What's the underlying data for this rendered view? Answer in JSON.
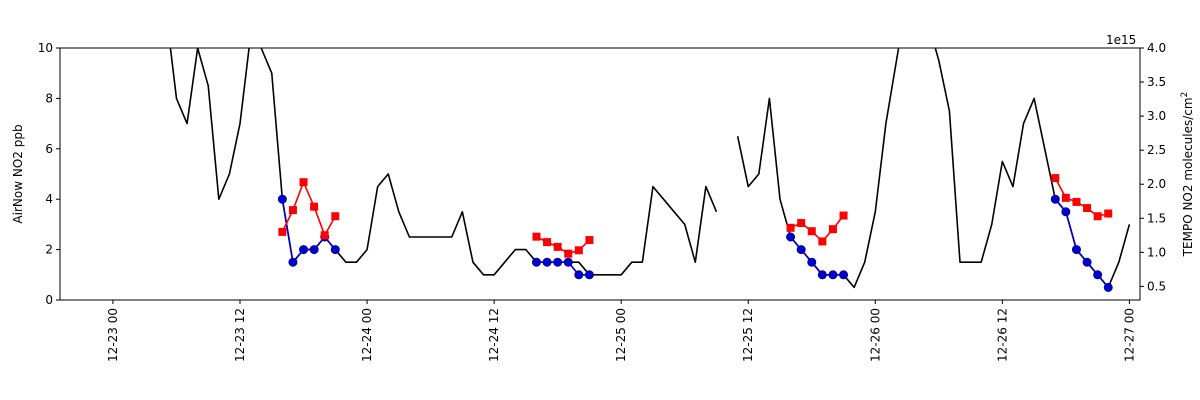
{
  "chart_data": {
    "type": "line",
    "ylabel_left": "AirNow NO2 ppb",
    "ylabel_right": "TEMPO NO2 molecules/cm",
    "ylabel_right_sup": "2",
    "right_offset_text": "1e15",
    "xlim": [
      "2012-12-22T19:00",
      "2012-12-27T01:00"
    ],
    "ylim_left": [
      0,
      10
    ],
    "ylim_right": [
      0.3,
      4.0
    ],
    "x_tick_labels": [
      {
        "t": "2012-12-23T00:00",
        "label": "12-23 00"
      },
      {
        "t": "2012-12-23T12:00",
        "label": "12-23 12"
      },
      {
        "t": "2012-12-24T00:00",
        "label": "12-24 00"
      },
      {
        "t": "2012-12-24T12:00",
        "label": "12-24 12"
      },
      {
        "t": "2012-12-25T00:00",
        "label": "12-25 00"
      },
      {
        "t": "2012-12-25T12:00",
        "label": "12-25 12"
      },
      {
        "t": "2012-12-26T00:00",
        "label": "12-26 00"
      },
      {
        "t": "2012-12-26T12:00",
        "label": "12-26 12"
      },
      {
        "t": "2012-12-27T00:00",
        "label": "12-27 00"
      }
    ],
    "y_left_ticks": [
      {
        "v": 0,
        "label": "0"
      },
      {
        "v": 2,
        "label": "2"
      },
      {
        "v": 4,
        "label": "4"
      },
      {
        "v": 6,
        "label": "6"
      },
      {
        "v": 8,
        "label": "8"
      },
      {
        "v": 10,
        "label": "10"
      }
    ],
    "y_right_ticks": [
      {
        "v": 0.5,
        "label": "0.5"
      },
      {
        "v": 1.0,
        "label": "1.0"
      },
      {
        "v": 1.5,
        "label": "1.5"
      },
      {
        "v": 2.0,
        "label": "2.0"
      },
      {
        "v": 2.5,
        "label": "2.5"
      },
      {
        "v": 3.0,
        "label": "3.0"
      },
      {
        "v": 3.5,
        "label": "3.5"
      },
      {
        "v": 4.0,
        "label": "4.0"
      }
    ],
    "series": [
      {
        "color": "#000000",
        "axis": "left",
        "marker": "none",
        "segments": [
          [
            [
              "2012-12-23T05:00",
              11.5
            ],
            [
              "2012-12-23T06:00",
              8.0
            ],
            [
              "2012-12-23T07:00",
              7.0
            ],
            [
              "2012-12-23T08:00",
              10.0
            ],
            [
              "2012-12-23T09:00",
              8.5
            ],
            [
              "2012-12-23T10:00",
              4.0
            ],
            [
              "2012-12-23T11:00",
              5.0
            ],
            [
              "2012-12-23T12:00",
              7.0
            ],
            [
              "2012-12-23T13:00",
              10.5
            ],
            [
              "2012-12-23T14:00",
              10.0
            ],
            [
              "2012-12-23T15:00",
              9.0
            ],
            [
              "2012-12-23T16:00",
              4.0
            ],
            [
              "2012-12-23T17:00",
              1.5
            ],
            [
              "2012-12-23T18:00",
              2.0
            ],
            [
              "2012-12-23T19:00",
              2.0
            ],
            [
              "2012-12-23T20:00",
              2.5
            ],
            [
              "2012-12-23T21:00",
              2.0
            ],
            [
              "2012-12-23T22:00",
              1.5
            ],
            [
              "2012-12-23T23:00",
              1.5
            ],
            [
              "2012-12-24T00:00",
              2.0
            ],
            [
              "2012-12-24T01:00",
              4.5
            ],
            [
              "2012-12-24T02:00",
              5.0
            ],
            [
              "2012-12-24T03:00",
              3.5
            ],
            [
              "2012-12-24T04:00",
              2.5
            ],
            [
              "2012-12-24T05:00",
              2.5
            ],
            [
              "2012-12-24T06:00",
              2.5
            ],
            [
              "2012-12-24T07:00",
              2.5
            ],
            [
              "2012-12-24T08:00",
              2.5
            ],
            [
              "2012-12-24T09:00",
              3.5
            ],
            [
              "2012-12-24T10:00",
              1.5
            ],
            [
              "2012-12-24T11:00",
              1.0
            ],
            [
              "2012-12-24T12:00",
              1.0
            ],
            [
              "2012-12-24T13:00",
              1.5
            ],
            [
              "2012-12-24T14:00",
              2.0
            ],
            [
              "2012-12-24T15:00",
              2.0
            ],
            [
              "2012-12-24T16:00",
              1.5
            ],
            [
              "2012-12-24T17:00",
              1.5
            ],
            [
              "2012-12-24T18:00",
              1.5
            ],
            [
              "2012-12-24T19:00",
              1.5
            ],
            [
              "2012-12-24T20:00",
              1.5
            ],
            [
              "2012-12-24T21:00",
              1.0
            ],
            [
              "2012-12-24T22:00",
              1.0
            ],
            [
              "2012-12-24T23:00",
              1.0
            ],
            [
              "2012-12-25T00:00",
              1.0
            ],
            [
              "2012-12-25T01:00",
              1.5
            ],
            [
              "2012-12-25T02:00",
              1.5
            ],
            [
              "2012-12-25T03:00",
              4.5
            ],
            [
              "2012-12-25T04:00",
              4.0
            ],
            [
              "2012-12-25T05:00",
              3.5
            ],
            [
              "2012-12-25T06:00",
              3.0
            ],
            [
              "2012-12-25T07:00",
              1.5
            ],
            [
              "2012-12-25T08:00",
              4.5
            ],
            [
              "2012-12-25T09:00",
              3.5
            ]
          ],
          [
            [
              "2012-12-25T11:00",
              6.5
            ],
            [
              "2012-12-25T12:00",
              4.5
            ],
            [
              "2012-12-25T13:00",
              5.0
            ],
            [
              "2012-12-25T14:00",
              8.0
            ],
            [
              "2012-12-25T15:00",
              4.0
            ],
            [
              "2012-12-25T16:00",
              2.5
            ],
            [
              "2012-12-25T17:00",
              2.0
            ],
            [
              "2012-12-25T18:00",
              1.5
            ],
            [
              "2012-12-25T19:00",
              1.0
            ],
            [
              "2012-12-25T20:00",
              1.0
            ],
            [
              "2012-12-25T21:00",
              1.0
            ],
            [
              "2012-12-25T22:00",
              0.5
            ],
            [
              "2012-12-25T23:00",
              1.5
            ],
            [
              "2012-12-26T00:00",
              3.5
            ],
            [
              "2012-12-26T01:00",
              7.0
            ],
            [
              "2012-12-26T02:00",
              9.5
            ],
            [
              "2012-12-26T03:00",
              12.0
            ],
            [
              "2012-12-26T04:00",
              11.0
            ],
            [
              "2012-12-26T05:00",
              11.0
            ],
            [
              "2012-12-26T06:00",
              9.5
            ],
            [
              "2012-12-26T07:00",
              7.5
            ],
            [
              "2012-12-26T08:00",
              1.5
            ],
            [
              "2012-12-26T09:00",
              1.5
            ],
            [
              "2012-12-26T10:00",
              1.5
            ],
            [
              "2012-12-26T11:00",
              3.0
            ],
            [
              "2012-12-26T12:00",
              5.5
            ],
            [
              "2012-12-26T13:00",
              4.5
            ],
            [
              "2012-12-26T14:00",
              7.0
            ],
            [
              "2012-12-26T15:00",
              8.0
            ],
            [
              "2012-12-26T16:00",
              6.0
            ],
            [
              "2012-12-26T17:00",
              4.0
            ],
            [
              "2012-12-26T18:00",
              3.5
            ],
            [
              "2012-12-26T19:00",
              2.0
            ],
            [
              "2012-12-26T20:00",
              1.5
            ],
            [
              "2012-12-26T21:00",
              1.0
            ],
            [
              "2012-12-26T22:00",
              0.5
            ],
            [
              "2012-12-26T23:00",
              1.5
            ],
            [
              "2012-12-27T00:00",
              3.0
            ]
          ]
        ]
      },
      {
        "color": "#0000cc",
        "axis": "left",
        "marker": "circle",
        "segments": [
          [
            [
              "2012-12-23T16:00",
              4.0
            ],
            [
              "2012-12-23T17:00",
              1.5
            ],
            [
              "2012-12-23T18:00",
              2.0
            ],
            [
              "2012-12-23T19:00",
              2.0
            ],
            [
              "2012-12-23T20:00",
              2.5
            ],
            [
              "2012-12-23T21:00",
              2.0
            ]
          ],
          [
            [
              "2012-12-24T16:00",
              1.5
            ],
            [
              "2012-12-24T17:00",
              1.5
            ],
            [
              "2012-12-24T18:00",
              1.5
            ],
            [
              "2012-12-24T19:00",
              1.5
            ],
            [
              "2012-12-24T20:00",
              1.0
            ],
            [
              "2012-12-24T21:00",
              1.0
            ]
          ],
          [
            [
              "2012-12-25T16:00",
              2.5
            ],
            [
              "2012-12-25T17:00",
              2.0
            ],
            [
              "2012-12-25T18:00",
              1.5
            ],
            [
              "2012-12-25T19:00",
              1.0
            ],
            [
              "2012-12-25T20:00",
              1.0
            ],
            [
              "2012-12-25T21:00",
              1.0
            ]
          ],
          [
            [
              "2012-12-26T17:00",
              4.0
            ],
            [
              "2012-12-26T18:00",
              3.5
            ],
            [
              "2012-12-26T19:00",
              2.0
            ],
            [
              "2012-12-26T20:00",
              1.5
            ],
            [
              "2012-12-26T21:00",
              1.0
            ],
            [
              "2012-12-26T22:00",
              0.5
            ]
          ]
        ]
      },
      {
        "color": "#ff0000",
        "axis": "right",
        "marker": "square",
        "segments": [
          [
            [
              "2012-12-23T16:00",
              1.3
            ],
            [
              "2012-12-23T17:00",
              1.62
            ],
            [
              "2012-12-23T18:00",
              2.03
            ],
            [
              "2012-12-23T19:00",
              1.67
            ],
            [
              "2012-12-23T20:00",
              1.25
            ],
            [
              "2012-12-23T21:00",
              1.53
            ]
          ],
          [
            [
              "2012-12-24T16:00",
              1.23
            ],
            [
              "2012-12-24T17:00",
              1.15
            ],
            [
              "2012-12-24T18:00",
              1.08
            ],
            [
              "2012-12-24T19:00",
              0.98
            ],
            [
              "2012-12-24T20:00",
              1.03
            ],
            [
              "2012-12-24T21:00",
              1.18
            ]
          ],
          [
            [
              "2012-12-25T16:00",
              1.36
            ],
            [
              "2012-12-25T17:00",
              1.43
            ],
            [
              "2012-12-25T18:00",
              1.31
            ],
            [
              "2012-12-25T19:00",
              1.16
            ],
            [
              "2012-12-25T20:00",
              1.34
            ],
            [
              "2012-12-25T21:00",
              1.54
            ]
          ],
          [
            [
              "2012-12-26T17:00",
              2.09
            ],
            [
              "2012-12-26T18:00",
              1.8
            ],
            [
              "2012-12-26T19:00",
              1.74
            ],
            [
              "2012-12-26T20:00",
              1.65
            ],
            [
              "2012-12-26T21:00",
              1.53
            ],
            [
              "2012-12-26T22:00",
              1.57
            ]
          ]
        ]
      }
    ]
  }
}
